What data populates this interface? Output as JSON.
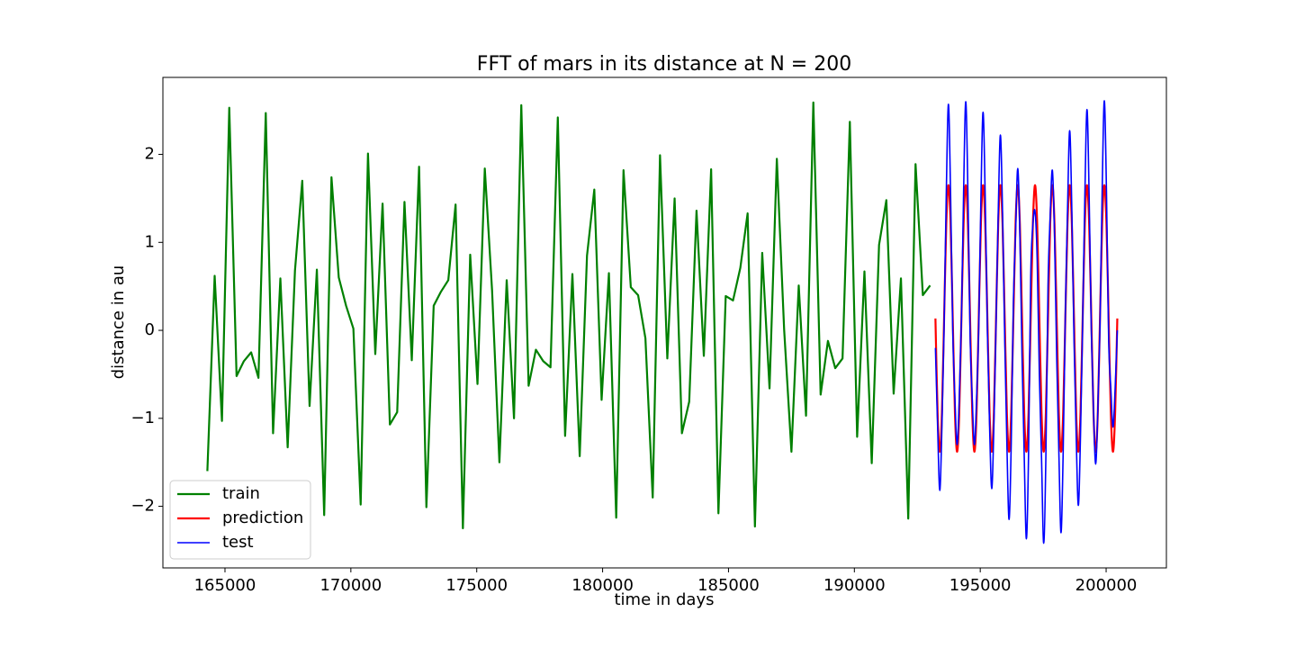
{
  "chart_data": {
    "type": "line",
    "title": "FFT of mars in its distance at N = 200",
    "xlabel": "time in days",
    "ylabel": "distance in au",
    "xlim": [
      162534,
      202394
    ],
    "ylim": [
      -2.7,
      2.875
    ],
    "xticks": [
      165000,
      170000,
      175000,
      180000,
      185000,
      190000,
      195000,
      200000
    ],
    "yticks": [
      {
        "value": -2,
        "label": "−2"
      },
      {
        "value": -1,
        "label": "−1"
      },
      0,
      1,
      2
    ],
    "legend": "lower left",
    "series": [
      {
        "name": "train",
        "color": "#008000",
        "x": [
          164300,
          164590,
          164880,
          165170,
          165460,
          165750,
          166040,
          166330,
          166620,
          166910,
          167200,
          167490,
          167780,
          168070,
          168360,
          168650,
          168940,
          169230,
          169520,
          169810,
          170100,
          170390,
          170680,
          170970,
          171260,
          171550,
          171840,
          172130,
          172420,
          172710,
          173000,
          173290,
          173580,
          173870,
          174160,
          174450,
          174740,
          175030,
          175320,
          175610,
          175900,
          176190,
          176480,
          176770,
          177060,
          177350,
          177640,
          177930,
          178220,
          178510,
          178800,
          179090,
          179380,
          179670,
          179960,
          180250,
          180540,
          180830,
          181120,
          181410,
          181700,
          181990,
          182280,
          182570,
          182860,
          183150,
          183440,
          183730,
          184020,
          184310,
          184600,
          184890,
          185180,
          185470,
          185760,
          186050,
          186340,
          186630,
          186920,
          187210,
          187500,
          187790,
          188080,
          188370,
          188660,
          188950,
          189240,
          189530,
          189820,
          190110,
          190400,
          190690,
          190980,
          191270,
          191560,
          191850,
          192140,
          192430,
          192720,
          193010
        ],
        "values": [
          -1.6,
          0.62,
          -1.03,
          2.53,
          -0.52,
          -0.35,
          -0.25,
          -0.54,
          2.47,
          -1.17,
          0.59,
          -1.33,
          0.68,
          1.7,
          -0.86,
          0.69,
          -2.1,
          1.74,
          0.6,
          0.28,
          0.02,
          -1.98,
          2.01,
          -0.27,
          1.44,
          -1.07,
          -0.93,
          1.46,
          -0.34,
          1.86,
          -2.01,
          0.28,
          0.44,
          0.57,
          1.43,
          -2.25,
          0.86,
          -0.61,
          1.84,
          0.45,
          -1.5,
          0.57,
          -1.0,
          2.56,
          -0.63,
          -0.22,
          -0.35,
          -0.42,
          2.42,
          -1.2,
          0.64,
          -1.43,
          0.85,
          1.6,
          -0.79,
          0.65,
          -2.13,
          1.82,
          0.49,
          0.4,
          -0.09,
          -1.9,
          1.99,
          -0.32,
          1.5,
          -1.17,
          -0.81,
          1.36,
          -0.29,
          1.83,
          -2.08,
          0.39,
          0.34,
          0.71,
          1.33,
          -2.23,
          0.88,
          -0.66,
          1.95,
          0.01,
          -1.38,
          0.51,
          -0.97,
          2.59,
          -0.73,
          -0.12,
          -0.43,
          -0.32,
          2.37,
          -1.21,
          0.67,
          -1.51,
          0.97,
          1.48,
          -0.72,
          0.59,
          -2.14,
          1.89,
          0.4,
          0.51
        ]
      },
      {
        "name": "prediction",
        "color": "#ff0000",
        "x": [
          193220,
          193306,
          193392,
          193478,
          193564,
          193650,
          193736,
          193822,
          193908,
          193994,
          194080,
          194166,
          194252,
          194338,
          194424,
          194510,
          194596,
          194682,
          194768,
          194854,
          194940,
          195026,
          195112,
          195198,
          195284,
          195370,
          195456,
          195542,
          195628,
          195714,
          195800,
          195886,
          195972,
          196058,
          196144,
          196230,
          196316,
          196402,
          196488,
          196574,
          196660,
          196746,
          196832,
          196918,
          197004,
          197090,
          197176,
          197262,
          197348,
          197434,
          197520,
          197606,
          197692,
          197778,
          197864,
          197950,
          198036,
          198122,
          198208,
          198294,
          198380,
          198466,
          198552,
          198638,
          198724,
          198810,
          198896,
          198982,
          199068,
          199154,
          199240,
          199326,
          199412,
          199498,
          199584,
          199670,
          199756,
          199842,
          199928,
          200014,
          200100,
          200186,
          200272,
          200358,
          200444
        ],
        "values": [
          0.135,
          -0.936,
          -1.38,
          -0.936,
          0.135,
          1.206,
          1.65,
          1.206,
          0.135,
          -0.936,
          -1.38,
          -0.936,
          0.135,
          1.206,
          1.65,
          1.206,
          0.135,
          -0.936,
          -1.38,
          -0.936,
          0.135,
          1.206,
          1.65,
          1.206,
          0.135,
          -0.936,
          -1.38,
          -0.936,
          0.135,
          1.206,
          1.65,
          1.206,
          0.135,
          -0.936,
          -1.38,
          -0.936,
          0.135,
          1.206,
          1.65,
          1.206,
          0.135,
          -0.936,
          -1.38,
          -0.936,
          0.135,
          1.206,
          1.65,
          1.206,
          0.135,
          -0.936,
          -1.38,
          -0.936,
          0.135,
          1.206,
          1.65,
          1.206,
          0.135,
          -0.936,
          -1.38,
          -0.936,
          0.135,
          1.206,
          1.65,
          1.206,
          0.135,
          -0.936,
          -1.38,
          -0.936,
          0.135,
          1.206,
          1.65,
          1.206,
          0.135,
          -0.936,
          -1.38,
          -0.936,
          0.135,
          1.206,
          1.65,
          1.206,
          0.135,
          -0.936,
          -1.38,
          -0.936,
          0.135
        ]
      },
      {
        "name": "test",
        "color": "#0000ff",
        "x": [
          193220,
          193306,
          193392,
          193478,
          193564,
          193650,
          193736,
          193822,
          193908,
          193994,
          194080,
          194166,
          194252,
          194338,
          194424,
          194510,
          194596,
          194682,
          194768,
          194854,
          194940,
          195026,
          195112,
          195198,
          195284,
          195370,
          195456,
          195542,
          195628,
          195714,
          195800,
          195886,
          195972,
          196058,
          196144,
          196230,
          196316,
          196402,
          196488,
          196574,
          196660,
          196746,
          196832,
          196918,
          197004,
          197090,
          197176,
          197262,
          197348,
          197434,
          197520,
          197606,
          197692,
          197778,
          197864,
          197950,
          198036,
          198122,
          198208,
          198294,
          198380,
          198466,
          198552,
          198638,
          198724,
          198810,
          198896,
          198982,
          199068,
          199154,
          199240,
          199326,
          199412,
          199498,
          199584,
          199670,
          199756,
          199842,
          199928,
          200014,
          200100,
          200186,
          200272,
          200358,
          200444
        ],
        "values": [
          -0.2,
          -1.09,
          -1.82,
          -1.09,
          0.05,
          1.54,
          2.57,
          1.54,
          0.0,
          -0.78,
          -1.3,
          -0.78,
          0.1,
          1.56,
          2.6,
          1.56,
          -0.05,
          -0.78,
          -1.3,
          -0.78,
          0.05,
          1.49,
          2.48,
          1.49,
          0.0,
          -1.08,
          -1.8,
          -1.08,
          0.1,
          1.33,
          2.22,
          1.33,
          -0.1,
          -1.29,
          -2.15,
          -1.29,
          0.3,
          1.1,
          1.84,
          1.1,
          -0.3,
          -1.42,
          -2.37,
          -1.42,
          0.6,
          1.2,
          1.35,
          0.8,
          -0.5,
          -1.45,
          -2.42,
          -1.45,
          0.5,
          1.3,
          1.82,
          1.09,
          -0.3,
          -1.38,
          -2.3,
          -1.38,
          0.2,
          1.36,
          2.27,
          1.36,
          -0.1,
          -1.19,
          -1.99,
          -1.19,
          0.1,
          1.51,
          2.51,
          1.51,
          0.0,
          -0.91,
          -1.52,
          -0.91,
          0.05,
          1.57,
          2.61,
          1.57,
          -0.1,
          -0.66,
          -1.1,
          -0.66,
          0.0
        ]
      }
    ]
  }
}
